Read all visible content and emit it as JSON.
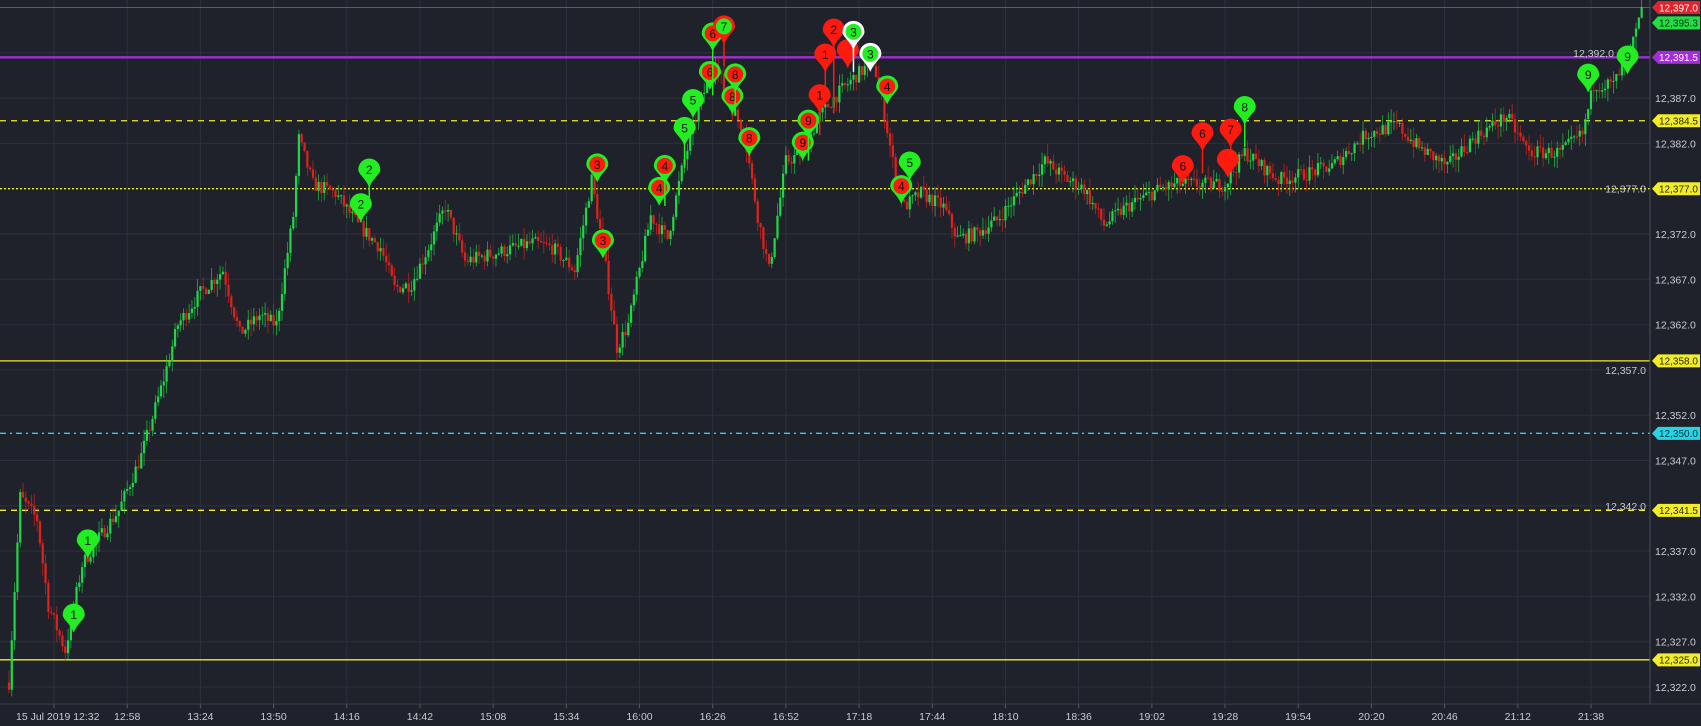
{
  "chart_data": {
    "type": "candlestick",
    "title": "",
    "date_label": "15 Jul 2019",
    "x_ticks": [
      "15 Jul 2019 12:32",
      "12:58",
      "13:24",
      "13:50",
      "14:16",
      "14:42",
      "15:08",
      "15:34",
      "16:00",
      "16:26",
      "16:52",
      "17:18",
      "17:44",
      "18:10",
      "18:36",
      "19:02",
      "19:28",
      "19:54",
      "20:20",
      "20:46",
      "21:12",
      "21:38"
    ],
    "x_range": [
      "12:16",
      "22:06"
    ],
    "y_ticks": [
      "12,322.0",
      "12,327.0",
      "12,332.0",
      "12,337.0",
      "12,342.0",
      "12,347.0",
      "12,352.0",
      "12,357.0",
      "12,362.0",
      "12,367.0",
      "12,372.0",
      "12,377.0",
      "12,382.0",
      "12,387.0",
      "12,392.0"
    ],
    "y_range": [
      12321,
      12398
    ],
    "grid": true,
    "candle_interval_minutes": 1,
    "colors": {
      "up": "#1fd845",
      "down": "#e3211c",
      "background": "#1f222b",
      "grid": "#2d313b",
      "axis_text": "#c8cbd2"
    },
    "price_path": [
      [
        "12:16",
        12322.5
      ],
      [
        "12:20",
        12343.0
      ],
      [
        "12:26",
        12340.5
      ],
      [
        "12:30",
        12331.0
      ],
      [
        "12:36",
        12326.0
      ],
      [
        "12:42",
        12335.5
      ],
      [
        "12:47",
        12338.0
      ],
      [
        "12:55",
        12341.5
      ],
      [
        "13:03",
        12347.5
      ],
      [
        "13:11",
        12356.0
      ],
      [
        "13:16",
        12362.0
      ],
      [
        "13:24",
        12365.5
      ],
      [
        "13:32",
        12368.0
      ],
      [
        "13:38",
        12361.0
      ],
      [
        "13:45",
        12363.0
      ],
      [
        "13:51",
        12362.0
      ],
      [
        "13:57",
        12374.0
      ],
      [
        "13:59",
        12382.5
      ],
      [
        "14:04",
        12377.5
      ],
      [
        "14:12",
        12376.5
      ],
      [
        "14:20",
        12373.0
      ],
      [
        "14:28",
        12370.5
      ],
      [
        "14:33",
        12366.0
      ],
      [
        "14:39",
        12366.5
      ],
      [
        "14:45",
        12370.5
      ],
      [
        "14:51",
        12375.0
      ],
      [
        "14:58",
        12369.0
      ],
      [
        "15:10",
        12370.0
      ],
      [
        "15:22",
        12371.0
      ],
      [
        "15:29",
        12370.5
      ],
      [
        "15:37",
        12368.0
      ],
      [
        "15:43",
        12378.0
      ],
      [
        "15:47",
        12370.5
      ],
      [
        "15:52",
        12359.5
      ],
      [
        "15:56",
        12362.0
      ],
      [
        "16:04",
        12374.0
      ],
      [
        "16:10",
        12371.5
      ],
      [
        "16:15",
        12379.0
      ],
      [
        "16:21",
        12386.0
      ],
      [
        "16:27",
        12391.0
      ],
      [
        "16:31",
        12387.0
      ],
      [
        "16:37",
        12383.5
      ],
      [
        "16:42",
        12374.0
      ],
      [
        "16:46",
        12368.0
      ],
      [
        "16:52",
        12380.0
      ],
      [
        "16:58",
        12381.0
      ],
      [
        "17:04",
        12385.0
      ],
      [
        "17:09",
        12387.0
      ],
      [
        "17:17",
        12389.5
      ],
      [
        "17:23",
        12391.0
      ],
      [
        "17:26",
        12387.0
      ],
      [
        "17:30",
        12380.0
      ],
      [
        "17:34",
        12375.0
      ],
      [
        "17:40",
        12376.5
      ],
      [
        "17:48",
        12375.0
      ],
      [
        "17:53",
        12371.5
      ],
      [
        "17:59",
        12372.0
      ],
      [
        "18:07",
        12373.5
      ],
      [
        "18:16",
        12377.0
      ],
      [
        "18:24",
        12380.0
      ],
      [
        "18:32",
        12378.0
      ],
      [
        "18:38",
        12377.0
      ],
      [
        "18:45",
        12373.0
      ],
      [
        "18:53",
        12375.0
      ],
      [
        "19:05",
        12377.0
      ],
      [
        "19:12",
        12377.5
      ],
      [
        "19:20",
        12377.5
      ],
      [
        "19:28",
        12377.5
      ],
      [
        "19:35",
        12381.0
      ],
      [
        "19:47",
        12378.0
      ],
      [
        "19:55",
        12378.5
      ],
      [
        "20:06",
        12379.5
      ],
      [
        "20:18",
        12383.0
      ],
      [
        "20:29",
        12384.0
      ],
      [
        "20:37",
        12381.5
      ],
      [
        "20:47",
        12379.5
      ],
      [
        "20:56",
        12382.5
      ],
      [
        "21:08",
        12385.0
      ],
      [
        "21:16",
        12381.0
      ],
      [
        "21:27",
        12381.0
      ],
      [
        "21:35",
        12383.0
      ],
      [
        "21:39",
        12388.5
      ],
      [
        "21:46",
        12388.5
      ],
      [
        "21:52",
        12392.0
      ],
      [
        "21:56",
        12396.5
      ]
    ],
    "levels": [
      {
        "price": 12397.0,
        "label": "12,397.0",
        "color": "#e0242b",
        "style": "solid",
        "text_color": "#ffffff"
      },
      {
        "price": 12395.3,
        "label": "12,395.3",
        "color": "#22dd44",
        "style": "none",
        "text_color": "#0b3312"
      },
      {
        "price": 12391.5,
        "label": "12,391.5",
        "color": "#a52bdc",
        "style": "thick",
        "text_color": "#ffffff"
      },
      {
        "price": 12384.5,
        "label": "12,384.5",
        "color": "#f2ec2a",
        "style": "dashed",
        "text_color": "#2a2a00"
      },
      {
        "price": 12377.0,
        "label": "12,377.0",
        "color": "#f2ec2a",
        "style": "dotted",
        "text_color": "#2a2a00"
      },
      {
        "price": 12358.0,
        "label": "12,358.0",
        "color": "#f2ec2a",
        "style": "solid",
        "text_color": "#2a2a00"
      },
      {
        "price": 12350.0,
        "label": "12,350.0",
        "color": "#27d4e6",
        "style": "dashdot",
        "text_color": "#06333a"
      },
      {
        "price": 12341.5,
        "label": "12,341.5",
        "color": "#f2ec2a",
        "style": "dashed",
        "text_color": "#2a2a00"
      },
      {
        "price": 12325.0,
        "label": "12,325.0",
        "color": "#f2ec2a",
        "style": "solid",
        "text_color": "#2a2a00"
      }
    ],
    "markers": [
      {
        "label": "1",
        "time": "12:39",
        "price": 12328.0,
        "pin": "green",
        "dot": "green"
      },
      {
        "label": "1",
        "time": "12:44",
        "price": 12336.2,
        "pin": "green",
        "dot": "green"
      },
      {
        "label": "2",
        "time": "14:21",
        "price": 12373.3,
        "pin": "green",
        "dot": "green"
      },
      {
        "label": "2",
        "time": "14:24",
        "price": 12374.7,
        "pin": "green",
        "dot": "green"
      },
      {
        "label": "3",
        "time": "15:45",
        "price": 12377.7,
        "pin": "green",
        "dot": "red"
      },
      {
        "label": "3",
        "time": "15:47",
        "price": 12369.3,
        "pin": "green",
        "dot": "red"
      },
      {
        "label": "4",
        "time": "16:07",
        "price": 12375.1,
        "pin": "green",
        "dot": "red"
      },
      {
        "label": "4",
        "time": "16:09",
        "price": 12375.1,
        "pin": "green",
        "dot": "red"
      },
      {
        "label": "5",
        "time": "16:16",
        "price": 12379.3,
        "pin": "green",
        "dot": "green"
      },
      {
        "label": "5",
        "time": "16:19",
        "price": 12384.8,
        "pin": "green",
        "dot": "green"
      },
      {
        "label": "6",
        "time": "16:25",
        "price": 12387.9,
        "pin": "green",
        "dot": "red"
      },
      {
        "label": "6",
        "time": "16:26",
        "price": 12387.3,
        "pin": "green",
        "dot": "red"
      },
      {
        "label": "7",
        "time": "16:30",
        "price": 12390.5,
        "pin": "red",
        "dot": "green"
      },
      {
        "label": "8",
        "time": "16:33",
        "price": 12385.2,
        "pin": "green",
        "dot": "red"
      },
      {
        "label": "8",
        "time": "16:34",
        "price": 12385.2,
        "pin": "green",
        "dot": "red"
      },
      {
        "label": "8",
        "time": "16:39",
        "price": 12380.6,
        "pin": "green",
        "dot": "red"
      },
      {
        "label": "9",
        "time": "16:58",
        "price": 12380.1,
        "pin": "green",
        "dot": "red"
      },
      {
        "label": "9",
        "time": "17:00",
        "price": 12380.1,
        "pin": "green",
        "dot": "red"
      },
      {
        "label": "1",
        "time": "17:04",
        "price": 12382.9,
        "pin": "red",
        "dot": "red"
      },
      {
        "label": "1",
        "time": "17:06",
        "price": 12387.4,
        "pin": "red",
        "dot": "red"
      },
      {
        "label": "2",
        "time": "17:09",
        "price": 12385.3,
        "pin": "red",
        "dot": "red"
      },
      {
        "label": "",
        "time": "17:14",
        "price": 12390.3,
        "pin": "red",
        "dot": "red"
      },
      {
        "label": "3",
        "time": "17:16",
        "price": 12389.9,
        "pin": "white",
        "dot": "green"
      },
      {
        "label": "3",
        "time": "17:22",
        "price": 12389.9,
        "pin": "white",
        "dot": "green"
      },
      {
        "label": "4",
        "time": "17:28",
        "price": 12386.3,
        "pin": "green",
        "dot": "red"
      },
      {
        "label": "4",
        "time": "17:33",
        "price": 12375.3,
        "pin": "green",
        "dot": "red"
      },
      {
        "label": "5",
        "time": "17:36",
        "price": 12377.9,
        "pin": "green",
        "dot": "green"
      },
      {
        "label": "6",
        "time": "19:13",
        "price": 12377.5,
        "pin": "red",
        "dot": "red"
      },
      {
        "label": "6",
        "time": "19:20",
        "price": 12378.7,
        "pin": "red",
        "dot": "red"
      },
      {
        "label": "",
        "time": "19:29",
        "price": 12378.2,
        "pin": "red",
        "dot": "red"
      },
      {
        "label": "7",
        "time": "19:30",
        "price": 12379.1,
        "pin": "red",
        "dot": "red"
      },
      {
        "label": "8",
        "time": "19:35",
        "price": 12381.6,
        "pin": "green",
        "dot": "green"
      },
      {
        "label": "9",
        "time": "21:37",
        "price": 12387.6,
        "pin": "green",
        "dot": "green"
      },
      {
        "label": "9",
        "time": "21:51",
        "price": 12389.6,
        "pin": "green",
        "dot": "green"
      }
    ]
  }
}
